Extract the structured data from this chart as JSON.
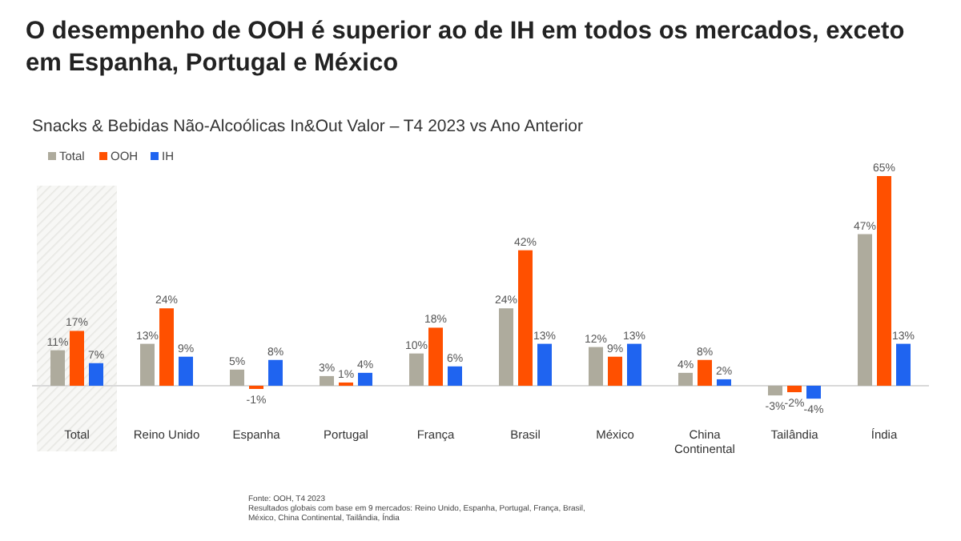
{
  "chart_data": {
    "type": "bar",
    "title": "O desempenho de OOH é superior ao de IH em todos os mercados, exceto em Espanha, Portugal e México",
    "subtitle": "Snacks & Bebidas Não-Alcoólicas In&Out Valor – T4 2023 vs Ano Anterior",
    "categories": [
      "Total",
      "Reino Unido",
      "Espanha",
      "Portugal",
      "França",
      "Brasil",
      "México",
      "China Continental",
      "Tailândia",
      "Índia"
    ],
    "series": [
      {
        "name": "Total",
        "color": "#aeab9d",
        "values": [
          11,
          13,
          5,
          3,
          10,
          24,
          12,
          4,
          -3,
          47
        ],
        "value_labels": [
          "11%",
          "13%",
          "5%",
          "3%",
          "10%",
          "24%",
          "12%",
          "4%",
          "-3%",
          "47%"
        ]
      },
      {
        "name": "OOH",
        "color": "#ff5000",
        "values": [
          17,
          24,
          -1,
          1,
          18,
          42,
          9,
          8,
          -2,
          65
        ],
        "value_labels": [
          "17%",
          "24%",
          "-1%",
          "1%",
          "18%",
          "42%",
          "9%",
          "8%",
          "-2%",
          "65%"
        ]
      },
      {
        "name": "IH",
        "color": "#1f64f0",
        "values": [
          7,
          9,
          8,
          4,
          6,
          13,
          13,
          2,
          -4,
          13
        ],
        "value_labels": [
          "7%",
          "9%",
          "8%",
          "4%",
          "6%",
          "13%",
          "13%",
          "2%",
          "-4%",
          "13%"
        ]
      }
    ],
    "legend": "top left",
    "bands": [
      {
        "axis": "x",
        "from": "Total",
        "to": "Total"
      }
    ],
    "annotations": [
      "Fonte: OOH, T4 2023",
      "Resultados globais com base em 9 mercados: Reino Unido, Espanha, Portugal, França, Brasil, México, China Continental, Tailândia, Índia"
    ]
  }
}
